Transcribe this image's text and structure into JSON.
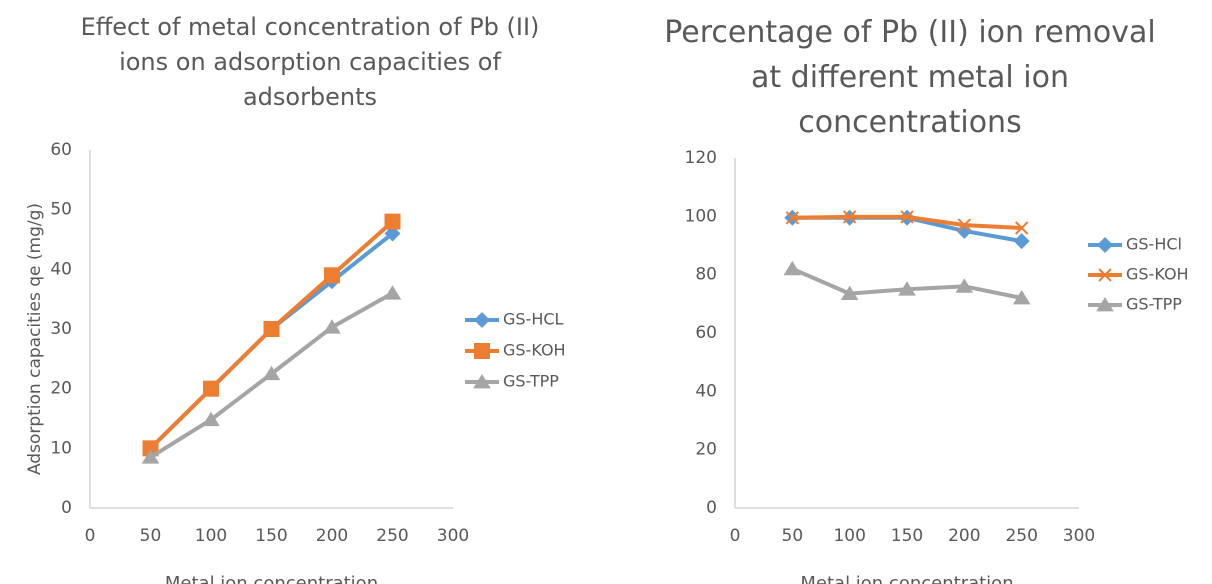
{
  "chart_data": [
    {
      "type": "line",
      "title": "Effect of metal concentration of Pb (II) ions on adsorption capacities of adsorbents",
      "x_label": "Metal ion concentration",
      "y_label": "Adsorption capacities qe (mg/g)",
      "x": [
        50,
        100,
        150,
        200,
        250
      ],
      "xlim": [
        0,
        300
      ],
      "xticks": [
        0,
        50,
        100,
        150,
        200,
        250,
        300
      ],
      "ylim": [
        0,
        60
      ],
      "yticks": [
        0,
        10,
        20,
        30,
        40,
        50,
        60
      ],
      "grid": false,
      "legend": "right",
      "series": [
        {
          "name": "GS-HCL",
          "color": "#5b9bd5",
          "marker": "diamond",
          "values": [
            10,
            20,
            30,
            38,
            46
          ]
        },
        {
          "name": "GS-KOH",
          "color": "#ed7d31",
          "marker": "square",
          "values": [
            10,
            20,
            30,
            39,
            48
          ]
        },
        {
          "name": "GS-TPP",
          "color": "#a5a5a5",
          "marker": "triangle",
          "values": [
            8.5,
            14.8,
            22.5,
            30.3,
            36
          ]
        }
      ]
    },
    {
      "type": "line",
      "title": "Percentage of Pb (II) ion removal at different metal ion concentrations",
      "x_label": "Metal ion concentration",
      "x": [
        50,
        100,
        150,
        200,
        250
      ],
      "xlim": [
        0,
        300
      ],
      "xticks": [
        0,
        50,
        100,
        150,
        200,
        250,
        300
      ],
      "ylim": [
        0,
        120
      ],
      "yticks": [
        0,
        20,
        40,
        60,
        80,
        100,
        120
      ],
      "grid": false,
      "legend": "right",
      "series": [
        {
          "name": "GS-HCl",
          "color": "#5b9bd5",
          "marker": "diamond",
          "values": [
            99.5,
            99.5,
            99.5,
            95,
            91.5
          ]
        },
        {
          "name": "GS-KOH",
          "color": "#ed7d31",
          "marker": "x",
          "values": [
            99.5,
            99.8,
            99.8,
            97,
            96
          ]
        },
        {
          "name": "GS-TPP",
          "color": "#a5a5a5",
          "marker": "triangle",
          "values": [
            82,
            73.5,
            75,
            76,
            72
          ]
        }
      ]
    }
  ]
}
